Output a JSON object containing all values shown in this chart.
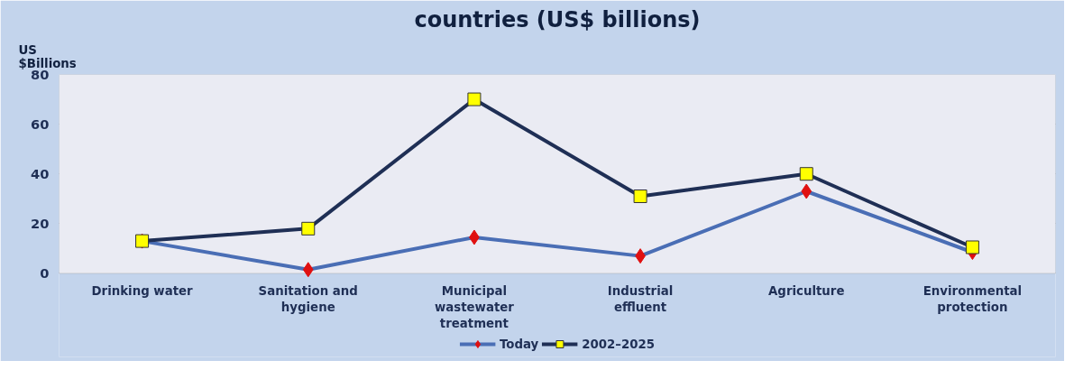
{
  "chart_data": {
    "type": "line",
    "title": "countries (US$ billions)",
    "ylabel": "US $Billions",
    "categories": [
      "Drinking water",
      "Sanitation and hygiene",
      "Municipal wastewater treatment",
      "Industrial effluent",
      "Agriculture",
      "Environmental protection"
    ],
    "series": [
      {
        "name": "Today",
        "color": "#4a6eb5",
        "marker": "diamond",
        "values": [
          13,
          1.5,
          14.5,
          7,
          33,
          8.5
        ]
      },
      {
        "name": "2002–2025",
        "color": "#1f2f55",
        "marker": "square",
        "values": [
          13,
          18,
          70,
          31,
          40,
          10.5
        ]
      }
    ],
    "ylim": [
      0,
      80
    ],
    "yticks": [
      0,
      20,
      40,
      60,
      80
    ],
    "grid": "y",
    "legend": "bottom",
    "line_style": "solid"
  }
}
